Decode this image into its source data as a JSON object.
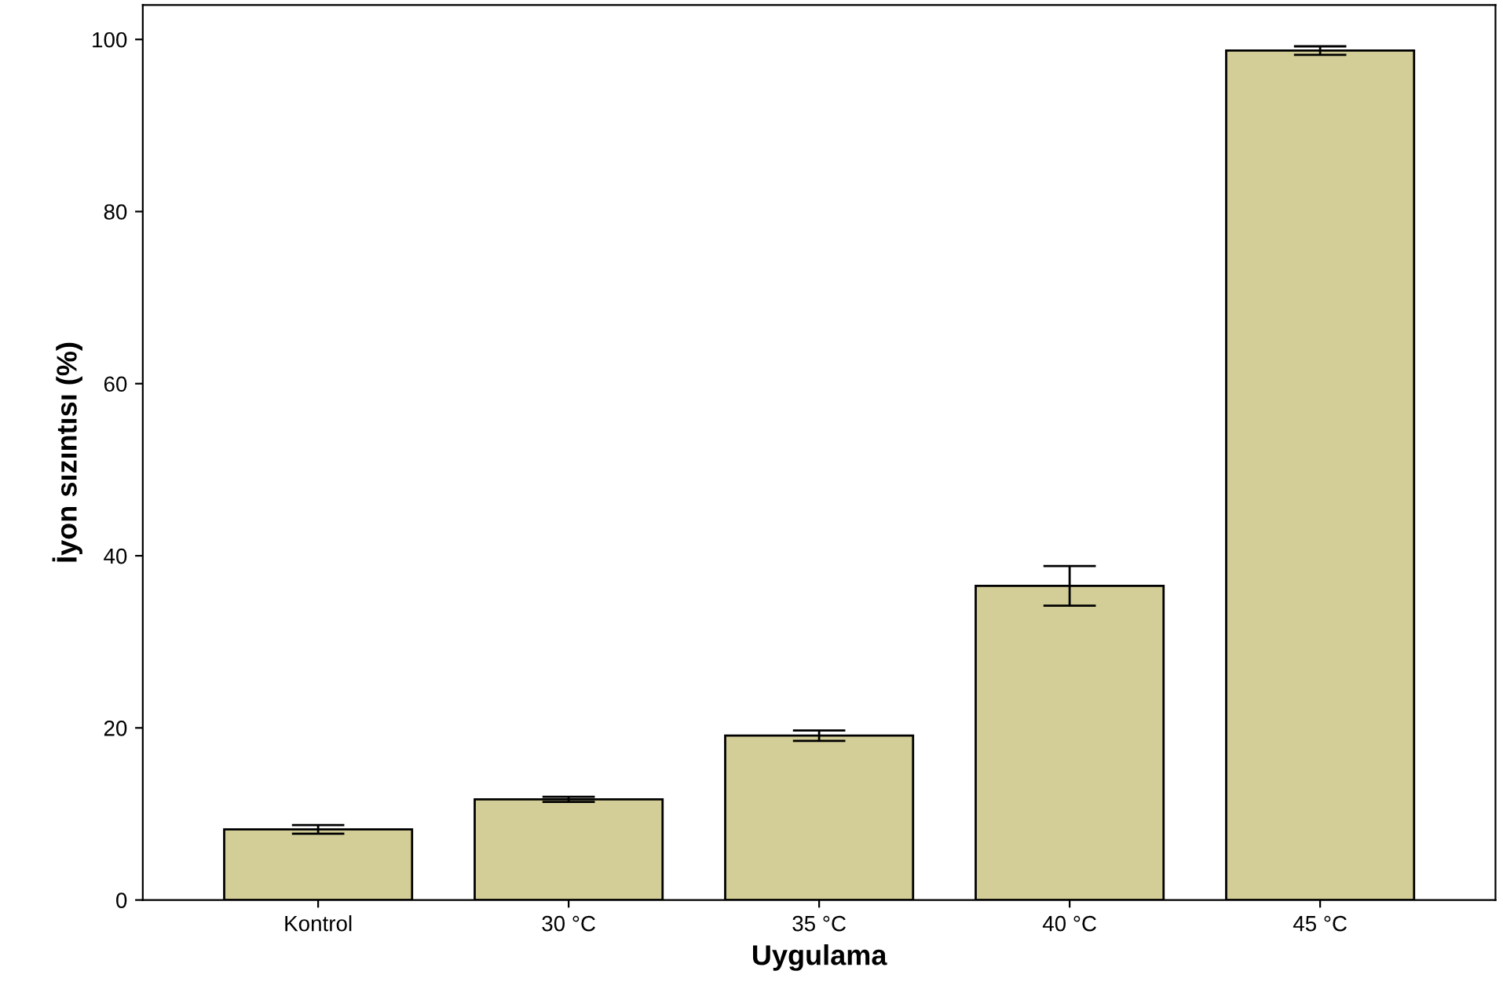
{
  "chart_data": {
    "type": "bar",
    "xlabel": "Uygulama",
    "ylabel": "İyon sızıntısı (%)",
    "categories": [
      "Kontrol",
      "30 °C",
      "35 °C",
      "40 °C",
      "45 °C"
    ],
    "values": [
      8.2,
      11.7,
      19.1,
      36.5,
      98.7
    ],
    "errors": [
      0.5,
      0.3,
      0.6,
      2.3,
      0.5
    ],
    "color": "#d3cd97",
    "ylim": [
      0,
      104
    ],
    "yticks": [
      0,
      20,
      40,
      60,
      80,
      100
    ],
    "grid": false
  }
}
